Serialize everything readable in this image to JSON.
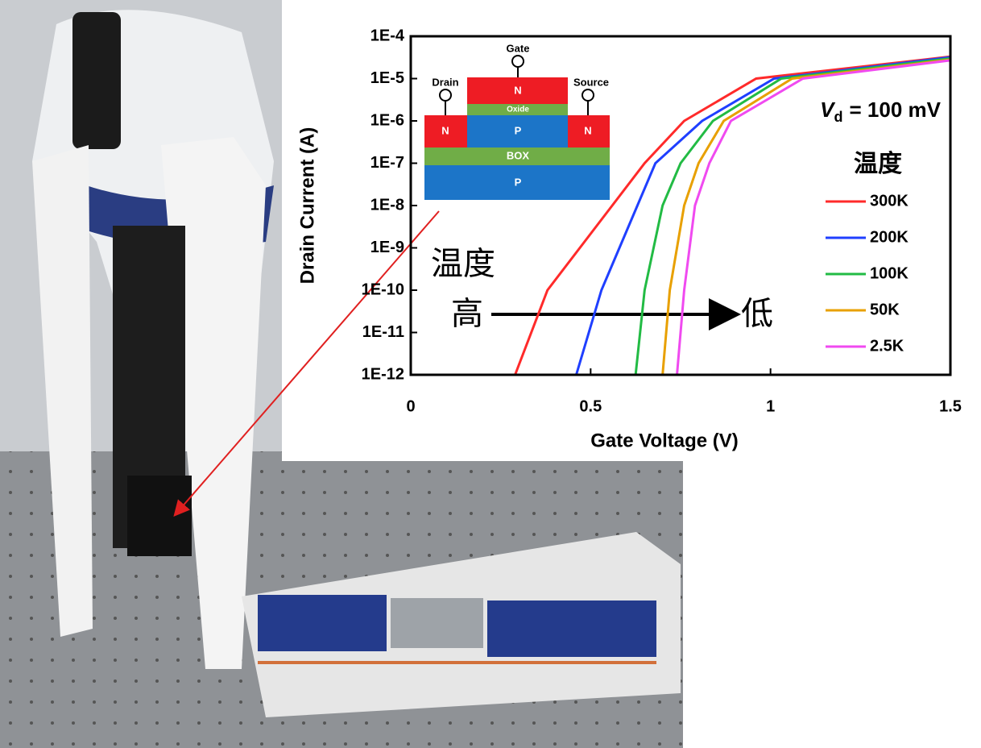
{
  "chart_data": {
    "type": "line",
    "x_label": "Gate Voltage (V)",
    "y_label": "Drain Current (A)",
    "log_y": true,
    "xlim": [
      0,
      1.5
    ],
    "xticks": [
      0,
      0.5,
      1,
      1.5
    ],
    "ylim": [
      1e-12,
      0.0001
    ],
    "yticks": [
      {
        "value": 0.0001,
        "label": "1E-4"
      },
      {
        "value": 1e-05,
        "label": "1E-5"
      },
      {
        "value": 1e-06,
        "label": "1E-6"
      },
      {
        "value": 1e-07,
        "label": "1E-7"
      },
      {
        "value": 1e-08,
        "label": "1E-8"
      },
      {
        "value": 1e-09,
        "label": "1E-9"
      },
      {
        "value": 1e-10,
        "label": "1E-10"
      },
      {
        "value": 1e-11,
        "label": "1E-11"
      },
      {
        "value": 1e-12,
        "label": "1E-12"
      }
    ],
    "vd_label": {
      "symbol": "V",
      "subscript": "d",
      "rest": "= 100 mV"
    },
    "legend_title": "温度",
    "series": [
      {
        "name": "300K",
        "color": "#ff2a2a",
        "x": [
          0.29,
          0.38,
          0.56,
          0.65,
          0.76,
          0.96,
          1.5
        ],
        "values": [
          1e-12,
          1e-10,
          1e-08,
          1e-07,
          1e-06,
          1e-05,
          3.3e-05
        ]
      },
      {
        "name": "200K",
        "color": "#1f3fff",
        "x": [
          0.46,
          0.53,
          0.63,
          0.68,
          0.81,
          1.01,
          1.5
        ],
        "values": [
          1e-12,
          1e-10,
          1e-08,
          1e-07,
          1e-06,
          1e-05,
          3.2e-05
        ]
      },
      {
        "name": "100K",
        "color": "#22bb44",
        "x": [
          0.625,
          0.65,
          0.7,
          0.75,
          0.84,
          1.03,
          1.5
        ],
        "values": [
          1e-12,
          1e-10,
          1e-08,
          1e-07,
          1e-06,
          1e-05,
          3e-05
        ]
      },
      {
        "name": "50K",
        "color": "#e8a000",
        "x": [
          0.7,
          0.72,
          0.76,
          0.8,
          0.87,
          1.06,
          1.5
        ],
        "values": [
          1e-12,
          1e-10,
          1e-08,
          1e-07,
          1e-06,
          1e-05,
          2.8e-05
        ]
      },
      {
        "name": "2.5K",
        "color": "#f04af0",
        "x": [
          0.74,
          0.76,
          0.79,
          0.83,
          0.89,
          1.09,
          1.5
        ],
        "values": [
          1e-12,
          1e-10,
          1e-08,
          1e-07,
          1e-06,
          1e-05,
          2.7e-05
        ]
      }
    ],
    "annotation": {
      "top": "温度",
      "left": "高",
      "right": "低"
    },
    "inset": {
      "gate": "Gate",
      "drain": "Drain",
      "source": "Source",
      "gate_n": "N",
      "oxide": "Oxide",
      "channel": "P",
      "drain_n": "N",
      "source_n": "N",
      "box": "BOX",
      "substrate": "P"
    }
  }
}
